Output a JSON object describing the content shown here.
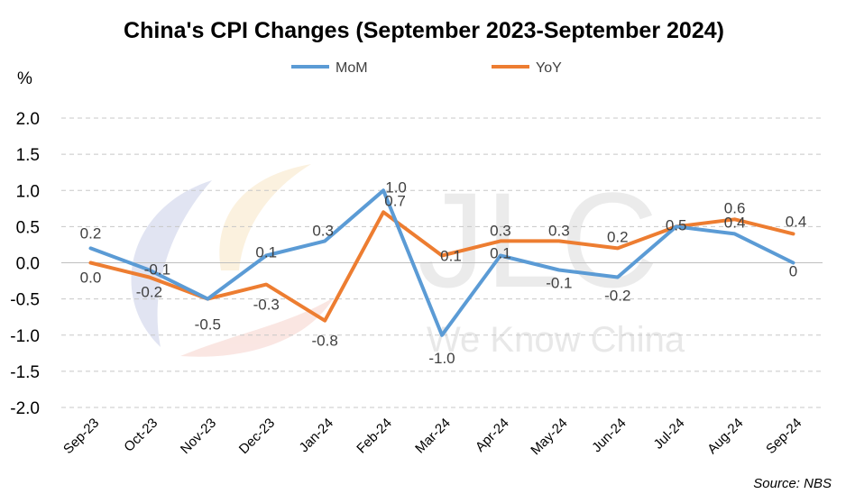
{
  "chart_data": {
    "type": "line",
    "title": "China's CPI Changes (September 2023-September 2024)",
    "ylabel": "%",
    "xlabel": "",
    "ylim": [
      -2.0,
      2.0
    ],
    "ytick_labels": [
      "2.0",
      "1.5",
      "1.0",
      "0.5",
      "0.0",
      "-0.5",
      "-1.0",
      "-1.5",
      "-2.0"
    ],
    "categories": [
      "Sep-23",
      "Oct-23",
      "Nov-23",
      "Dec-23",
      "Jan-24",
      "Feb-24",
      "Mar-24",
      "Apr-24",
      "May-24",
      "Jun-24",
      "Jul-24",
      "Aug-24",
      "Sep-24"
    ],
    "series": [
      {
        "name": "MoM",
        "color": "#5B9BD5",
        "values": [
          0.2,
          -0.1,
          -0.5,
          0.1,
          0.3,
          1.0,
          -1.0,
          0.1,
          -0.1,
          -0.2,
          0.5,
          0.4,
          0
        ],
        "labels": [
          "0.2",
          "-0.1",
          "-0.5",
          "0.1",
          "0.3",
          "1.0",
          "-1.0",
          "0.1",
          "-0.1",
          "-0.2",
          "0.5",
          "0.4",
          "0"
        ]
      },
      {
        "name": "YoY",
        "color": "#ED7D31",
        "values": [
          0.0,
          -0.2,
          -0.5,
          -0.3,
          -0.8,
          0.7,
          0.1,
          0.3,
          0.3,
          0.2,
          0.5,
          0.6,
          0.4
        ],
        "labels": [
          "0.0",
          "-0.2",
          "",
          "-0.3",
          "-0.8",
          "0.7",
          "0.1",
          "0.3",
          "0.3",
          "0.2",
          "",
          "0.6",
          "0.4"
        ]
      }
    ],
    "legend": "top-center",
    "grid": true,
    "source": "Source: NBS",
    "watermark": {
      "logo": "JLC",
      "tagline": "We Know China"
    }
  }
}
